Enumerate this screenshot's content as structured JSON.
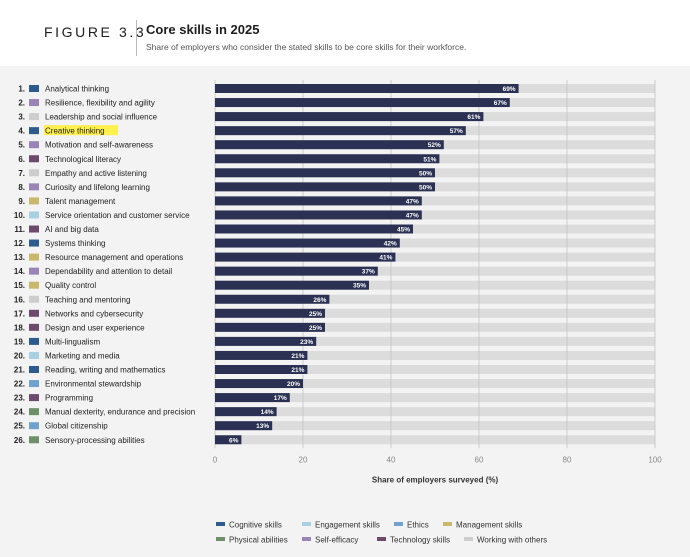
{
  "figure_label": "FIGURE 3.3",
  "title": "Core skills in 2025",
  "subtitle": "Share of employers who consider the stated skills to be core skills for their workforce.",
  "colors": {
    "bar": "#2b3153",
    "track": "#dcdcdc",
    "highlight": "#fff04d",
    "grid": "#c4c4c4",
    "Cognitive skills": "#2e5b8d",
    "Engagement skills": "#a9cfe3",
    "Ethics": "#6fa2cf",
    "Management skills": "#c9b86c",
    "Physical abilities": "#6f8f6b",
    "Self-efficacy": "#9a83b6",
    "Technology skills": "#6b4a6b",
    "Working with others": "#cdcdcd"
  },
  "chart_data": {
    "type": "bar",
    "orientation": "horizontal",
    "xlabel": "Share of employers surveyed (%)",
    "xlim": [
      0,
      100
    ],
    "xticks": [
      0,
      20,
      40,
      60,
      80,
      100
    ],
    "grid": true,
    "highlighted": "Creative thinking",
    "legend_position": "bottom",
    "categories": [
      {
        "rank": "1.",
        "label": "Analytical thinking",
        "value": 69,
        "value_label": "69%",
        "group": "Cognitive skills"
      },
      {
        "rank": "2.",
        "label": "Resilience, flexibility and agility",
        "value": 67,
        "value_label": "67%",
        "group": "Self-efficacy"
      },
      {
        "rank": "3.",
        "label": "Leadership and social influence",
        "value": 61,
        "value_label": "61%",
        "group": "Working with others"
      },
      {
        "rank": "4.",
        "label": "Creative thinking",
        "value": 57,
        "value_label": "57%",
        "group": "Cognitive skills"
      },
      {
        "rank": "5.",
        "label": "Motivation and self-awareness",
        "value": 52,
        "value_label": "52%",
        "group": "Self-efficacy"
      },
      {
        "rank": "6.",
        "label": "Technological literacy",
        "value": 51,
        "value_label": "51%",
        "group": "Technology skills"
      },
      {
        "rank": "7.",
        "label": "Empathy and active listening",
        "value": 50,
        "value_label": "50%",
        "group": "Working with others"
      },
      {
        "rank": "8.",
        "label": "Curiosity and lifelong learning",
        "value": 50,
        "value_label": "50%",
        "group": "Self-efficacy"
      },
      {
        "rank": "9.",
        "label": "Talent management",
        "value": 47,
        "value_label": "47%",
        "group": "Management skills"
      },
      {
        "rank": "10.",
        "label": "Service orientation and customer service",
        "value": 47,
        "value_label": "47%",
        "group": "Engagement skills"
      },
      {
        "rank": "11.",
        "label": "AI and big data",
        "value": 45,
        "value_label": "45%",
        "group": "Technology skills"
      },
      {
        "rank": "12.",
        "label": "Systems thinking",
        "value": 42,
        "value_label": "42%",
        "group": "Cognitive skills"
      },
      {
        "rank": "13.",
        "label": "Resource management and operations",
        "value": 41,
        "value_label": "41%",
        "group": "Management skills"
      },
      {
        "rank": "14.",
        "label": "Dependability and attention to detail",
        "value": 37,
        "value_label": "37%",
        "group": "Self-efficacy"
      },
      {
        "rank": "15.",
        "label": "Quality control",
        "value": 35,
        "value_label": "35%",
        "group": "Management skills"
      },
      {
        "rank": "16.",
        "label": "Teaching and mentoring",
        "value": 26,
        "value_label": "26%",
        "group": "Working with others"
      },
      {
        "rank": "17.",
        "label": "Networks and cybersecurity",
        "value": 25,
        "value_label": "25%",
        "group": "Technology skills"
      },
      {
        "rank": "18.",
        "label": "Design and user experience",
        "value": 25,
        "value_label": "25%",
        "group": "Technology skills"
      },
      {
        "rank": "19.",
        "label": "Multi-lingualism",
        "value": 23,
        "value_label": "23%",
        "group": "Cognitive skills"
      },
      {
        "rank": "20.",
        "label": "Marketing and media",
        "value": 21,
        "value_label": "21%",
        "group": "Engagement skills"
      },
      {
        "rank": "21.",
        "label": "Reading, writing and mathematics",
        "value": 21,
        "value_label": "21%",
        "group": "Cognitive skills"
      },
      {
        "rank": "22.",
        "label": "Environmental stewardship",
        "value": 20,
        "value_label": "20%",
        "group": "Ethics"
      },
      {
        "rank": "23.",
        "label": "Programming",
        "value": 17,
        "value_label": "17%",
        "group": "Technology skills"
      },
      {
        "rank": "24.",
        "label": "Manual dexterity, endurance and precision",
        "value": 14,
        "value_label": "14%",
        "group": "Physical abilities"
      },
      {
        "rank": "25.",
        "label": "Global citizenship",
        "value": 13,
        "value_label": "13%",
        "group": "Ethics"
      },
      {
        "rank": "26.",
        "label": "Sensory-processing abilities",
        "value": 6,
        "value_label": "6%",
        "group": "Physical abilities"
      }
    ],
    "legend": [
      [
        "Cognitive skills",
        "Engagement skills",
        "Ethics",
        "Management skills"
      ],
      [
        "Physical abilities",
        "Self-efficacy",
        "Technology skills",
        "Working with others"
      ]
    ]
  }
}
